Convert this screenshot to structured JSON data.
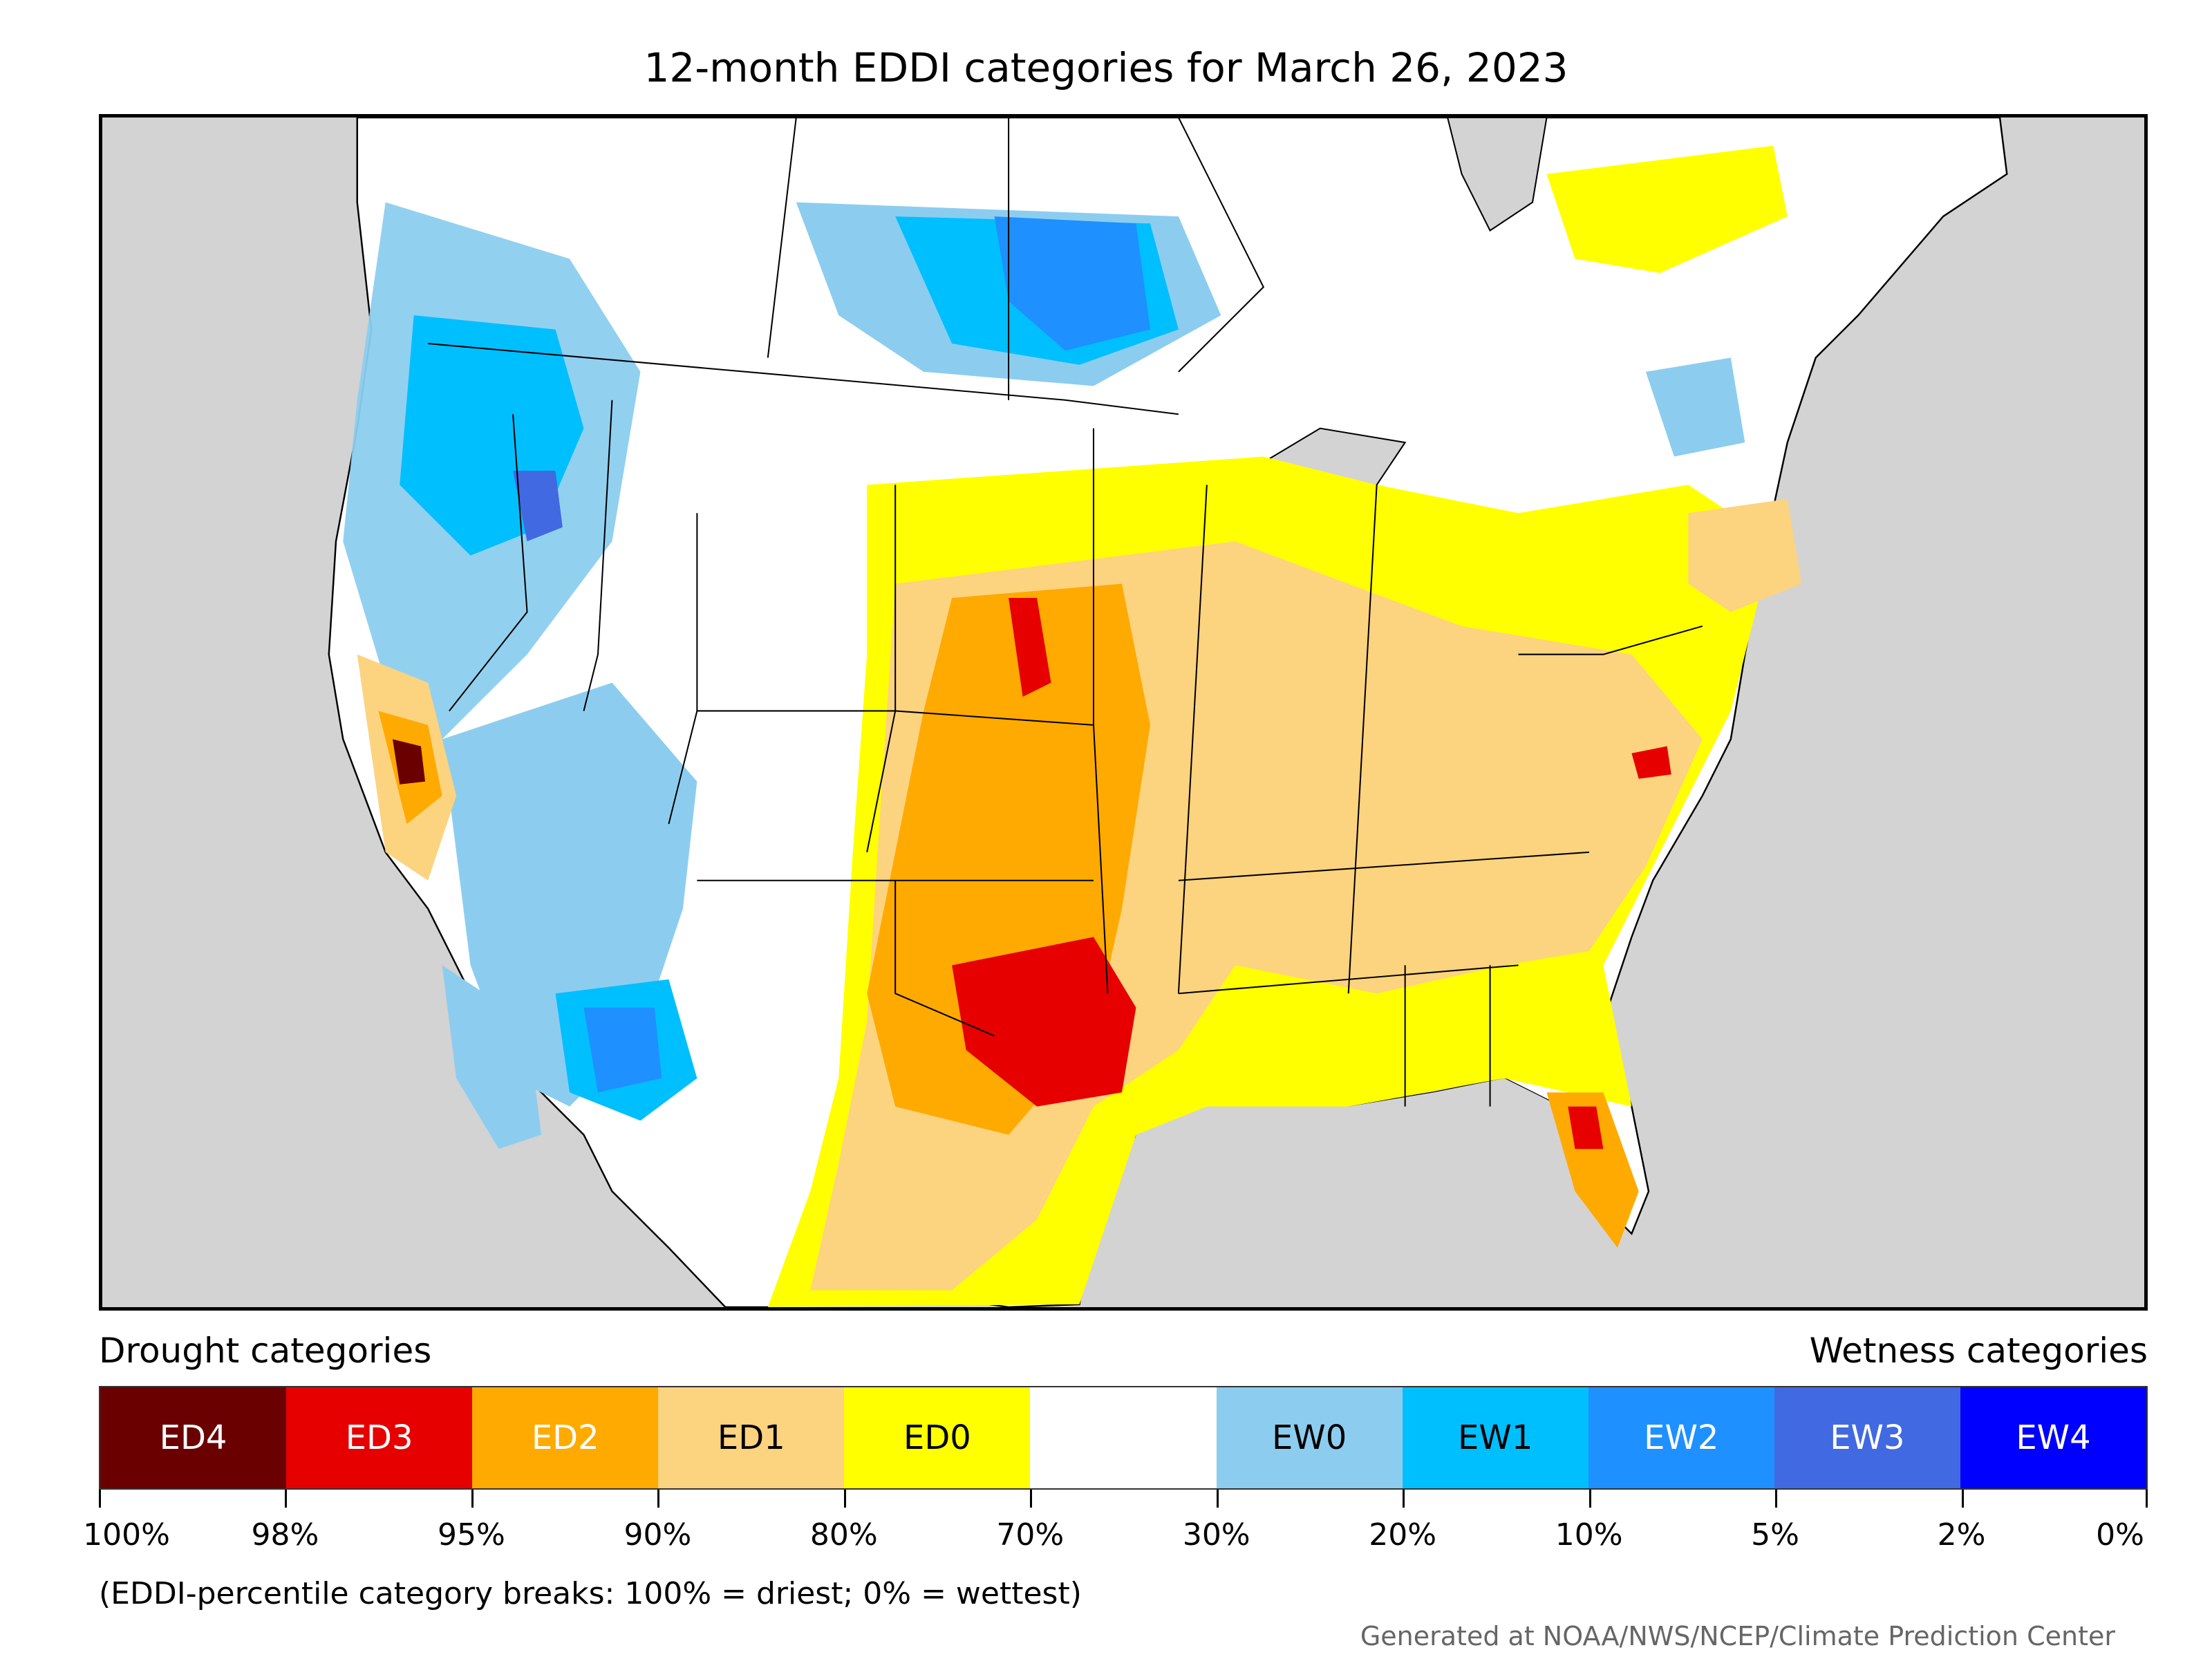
{
  "title": "12-month EDDI categories for March 26, 2023",
  "legend": {
    "drought_heading": "Drought categories",
    "wetness_heading": "Wetness categories",
    "categories": [
      {
        "label": "ED4",
        "color": "#6b0000",
        "text_color": "#ffffff"
      },
      {
        "label": "ED3",
        "color": "#e60000",
        "text_color": "#ffffff"
      },
      {
        "label": "ED2",
        "color": "#ffaa00",
        "text_color": "#ffffff"
      },
      {
        "label": "ED1",
        "color": "#fcd37f",
        "text_color": "#000000"
      },
      {
        "label": "ED0",
        "color": "#ffff00",
        "text_color": "#000000"
      },
      {
        "label": "",
        "color": "#ffffff",
        "text_color": "#000000"
      },
      {
        "label": "EW0",
        "color": "#8ccdef",
        "text_color": "#000000"
      },
      {
        "label": "EW1",
        "color": "#00bfff",
        "text_color": "#000000"
      },
      {
        "label": "EW2",
        "color": "#1e90ff",
        "text_color": "#ffffff"
      },
      {
        "label": "EW3",
        "color": "#4169e1",
        "text_color": "#ffffff"
      },
      {
        "label": "EW4",
        "color": "#0000ff",
        "text_color": "#ffffff"
      }
    ],
    "breaks": [
      "100%",
      "98%",
      "95%",
      "90%",
      "80%",
      "70%",
      "30%",
      "20%",
      "10%",
      "5%",
      "2%",
      "0%"
    ]
  },
  "footnote": "(EDDI-percentile category breaks: 100% = driest; 0% = wettest)",
  "credit": "Generated at NOAA/NWS/NCEP/Climate Prediction Center",
  "colors": {
    "background": "#d3d3d3",
    "land": "#ffffff",
    "water": "#d3d3d3",
    "ED4": "#6b0000",
    "ED3": "#e60000",
    "ED2": "#ffaa00",
    "ED1": "#fcd37f",
    "ED0": "#ffff00",
    "EW0": "#8ccdef",
    "EW1": "#00bfff",
    "EW2": "#1e90ff",
    "EW3": "#4169e1",
    "EW4": "#0000ff"
  }
}
